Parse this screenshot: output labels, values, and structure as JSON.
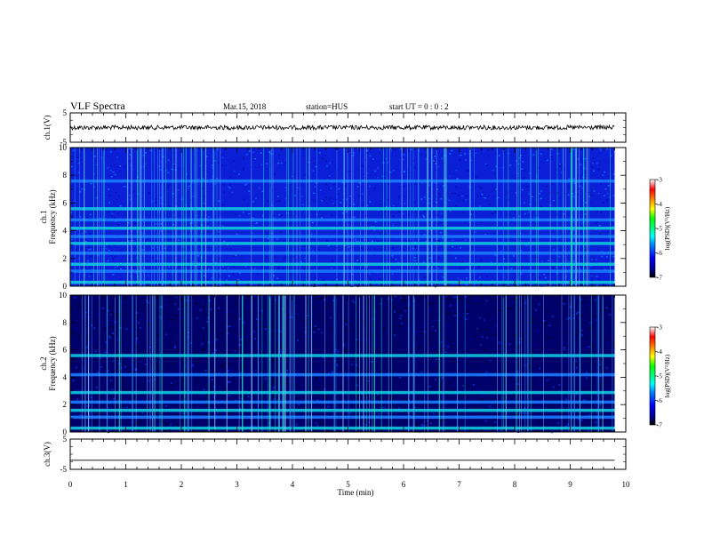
{
  "header": {
    "title": "VLF Spectra",
    "date": "Mar.15, 2018",
    "station": "station=HUS",
    "start_ut": "start UT =  0 : 0  : 2"
  },
  "chart_data": [
    {
      "type": "line",
      "panel": "ch1-waveform",
      "ylabel": "ch.1(V)",
      "ylim": [
        -5,
        5
      ],
      "yticks": [
        "5",
        "-5"
      ],
      "xlim": [
        0,
        10
      ],
      "series": [
        {
          "x": [
            0,
            9.8
          ],
          "y": [
            0,
            0
          ]
        }
      ]
    },
    {
      "type": "heatmap",
      "panel": "ch1-spectrogram",
      "ylabel": "ch.1\nFrequency (kHz)",
      "ylim": [
        0,
        10
      ],
      "yticks": [
        "0",
        "2",
        "4",
        "6",
        "8",
        "10"
      ],
      "xlim": [
        0,
        9.8
      ],
      "bands_khz": [
        0.3,
        1.1,
        1.6,
        2.4,
        3.1,
        3.6,
        4.2,
        4.8,
        5.6,
        7.6
      ],
      "colorbar": {
        "label": "log(PSD)(V²/Hz)",
        "range": [
          -7,
          -3
        ],
        "ticks": [
          "-3",
          "-4",
          "-5",
          "-6",
          "-7"
        ]
      }
    },
    {
      "type": "heatmap",
      "panel": "ch2-spectrogram",
      "ylabel": "ch.2\nFrequency (kHz)",
      "ylim": [
        0,
        10
      ],
      "yticks": [
        "0",
        "2",
        "4",
        "6",
        "8",
        "10"
      ],
      "xlim": [
        0,
        9.8
      ],
      "bands_khz": [
        0.3,
        1.1,
        1.6,
        2.2,
        2.9,
        4.2,
        5.6
      ],
      "colorbar": {
        "label": "log(PSD)(V²/Hz)",
        "range": [
          -7,
          -3
        ],
        "ticks": [
          "-3",
          "-4",
          "-5",
          "-6",
          "-7"
        ]
      }
    },
    {
      "type": "line",
      "panel": "ch3-waveform",
      "ylabel": "ch.3(V)",
      "ylim": [
        -5,
        5
      ],
      "yticks": [
        "5",
        "-5"
      ],
      "xlim": [
        0,
        10
      ],
      "series": [
        {
          "x": [
            0,
            9.8
          ],
          "y": [
            -2,
            -2
          ]
        }
      ]
    }
  ],
  "xaxis": {
    "label": "Time  (min)",
    "ticks": [
      "0",
      "1",
      "2",
      "3",
      "4",
      "5",
      "6",
      "7",
      "8",
      "9",
      "10"
    ]
  },
  "colors": {
    "colormap": [
      "#000000",
      "#00008b",
      "#0000ff",
      "#0080ff",
      "#00ffff",
      "#00ff80",
      "#00ff00",
      "#ffff00",
      "#ff8000",
      "#ff0000",
      "#ffffff"
    ]
  }
}
